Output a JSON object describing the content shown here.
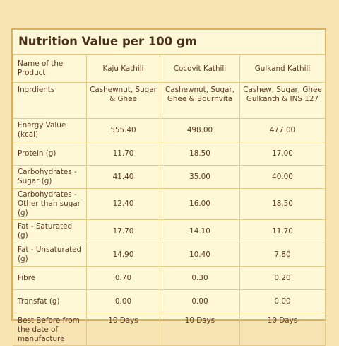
{
  "title": "Nutrition Value per 100 gm",
  "table": {
    "header": [
      "Name of the Product",
      "Kaju Kathili",
      "Cocovit Kathili",
      "Gulkand Kathili"
    ],
    "rows": [
      {
        "label": "Ingrdients",
        "values": [
          "Cashewnut, Sugar & Ghee",
          "Cashewnut, Sugar, Ghee & Bournvita",
          "Cashew, Sugar, Ghee Gulkanth & INS 127"
        ]
      },
      {
        "label": "Energy Value (kcal)",
        "values": [
          "555.40",
          "498.00",
          "477.00"
        ]
      },
      {
        "label": "Protein (g)",
        "values": [
          "11.70",
          "18.50",
          "17.00"
        ]
      },
      {
        "label": "Carbohydrates - Sugar (g)",
        "values": [
          "41.40",
          "35.00",
          "40.00"
        ]
      },
      {
        "label": "Carbohydrates - Other than sugar (g)",
        "values": [
          "12.40",
          "16.00",
          "18.50"
        ]
      },
      {
        "label": "Fat - Saturated (g)",
        "values": [
          "17.70",
          "14.10",
          "11.70"
        ]
      },
      {
        "label": "Fat - Unsaturated (g)",
        "values": [
          "14.90",
          "10.40",
          "7.80"
        ]
      },
      {
        "label": "Fibre",
        "values": [
          "0.70",
          "0.30",
          "0.20"
        ]
      },
      {
        "label": "Transfat (g)",
        "values": [
          "0.00",
          "0.00",
          "0.00"
        ]
      },
      {
        "label": "Best Before from the date of manufacture",
        "values": [
          "10 Days",
          "10 Days",
          "10 Days"
        ]
      }
    ]
  }
}
